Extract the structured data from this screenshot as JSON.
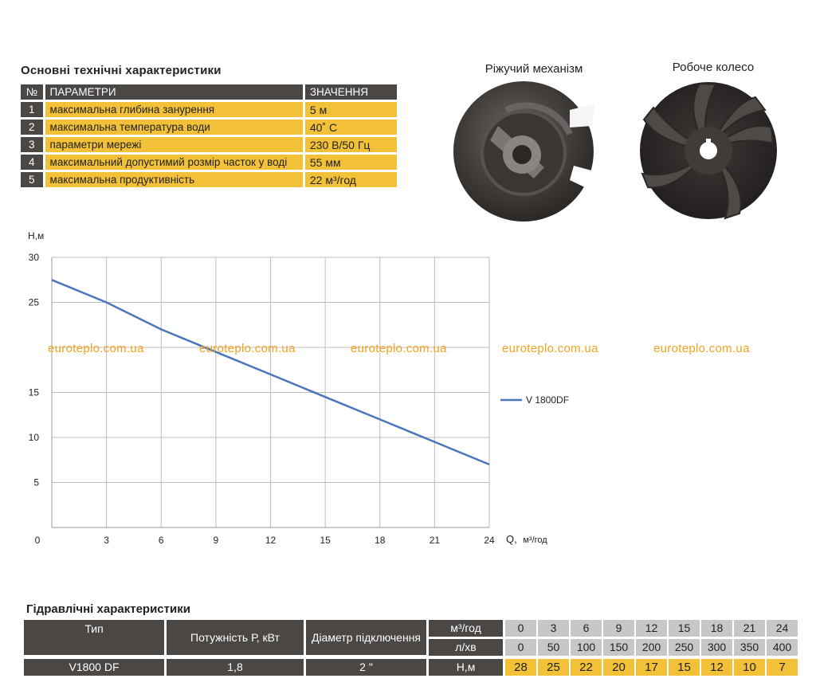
{
  "spec": {
    "title": "Основні технічні характеристики",
    "headers": {
      "num": "№",
      "param": "ПАРАМЕТРИ",
      "value": "ЗНАЧЕННЯ"
    },
    "rows": [
      {
        "num": "1",
        "param": "максимальна глибина занурення",
        "value": "5 м"
      },
      {
        "num": "2",
        "param": "максимальна температура води",
        "value": "40˚ С"
      },
      {
        "num": "3",
        "param": "параметри мережі",
        "value": "230 В/50 Гц"
      },
      {
        "num": "4",
        "param": "максимальний допустимий розмір часток у воді",
        "value": "55 мм"
      },
      {
        "num": "5",
        "param": "максимальна продуктивність",
        "value": "22 м³/год"
      }
    ]
  },
  "images": {
    "cutting_label": "Ріжучий механізм",
    "wheel_label": "Робоче колесо"
  },
  "watermark": "euroteplo.com.ua",
  "chart_data": {
    "type": "line",
    "ylabel": "H,м",
    "xlabel": "Q,",
    "xlabel_unit": "м³/год",
    "xlim": [
      0,
      24
    ],
    "ylim": [
      0,
      30
    ],
    "x_ticks": [
      0,
      3,
      6,
      9,
      12,
      15,
      18,
      21,
      24
    ],
    "y_ticks": [
      5,
      10,
      15,
      25,
      30
    ],
    "grid": true,
    "legend_position": "right",
    "series": [
      {
        "name": "V 1800DF",
        "x": [
          0,
          3,
          6,
          9,
          12,
          15,
          18,
          21,
          24
        ],
        "y": [
          27.5,
          25,
          22,
          19.5,
          17,
          14.5,
          12,
          9.5,
          7
        ]
      }
    ]
  },
  "hydraulic": {
    "title": "Гідравлічні характеристики",
    "col_type": "Тип",
    "col_power": "Потужність Р, кВт",
    "col_diam": "Діаметр підключення",
    "unit_m3": "м³/год",
    "unit_lmin": "л/хв",
    "unit_h": "Н,м",
    "q_m3": [
      "0",
      "3",
      "6",
      "9",
      "12",
      "15",
      "18",
      "21",
      "24"
    ],
    "q_lmin": [
      "0",
      "50",
      "100",
      "150",
      "200",
      "250",
      "300",
      "350",
      "400"
    ],
    "model": {
      "type": "V1800 DF",
      "power": "1,8",
      "diam": "2 \"",
      "head": [
        "28",
        "25",
        "22",
        "20",
        "17",
        "15",
        "12",
        "10",
        "7"
      ]
    }
  },
  "colors": {
    "dark": "#4a4745",
    "yellow": "#f2c137",
    "grey": "#c9c7c5",
    "line": "#4a76bb",
    "watermark": "#f3a31c"
  }
}
